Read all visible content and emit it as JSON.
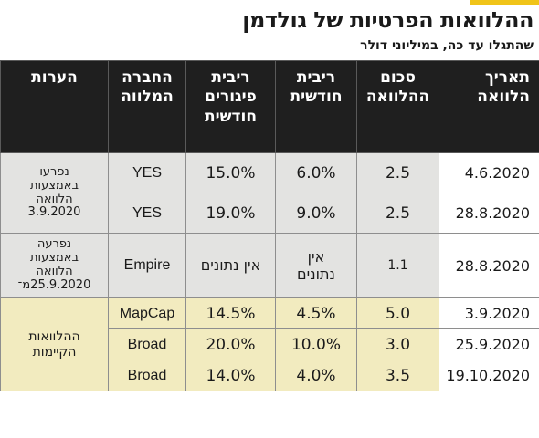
{
  "title": "ההלוואות הפרטיות של גולדמן",
  "subtitle": "שהתגלו עד כה, במיליוני דולר",
  "columns": {
    "date": "תאריך\nהלוואה",
    "amount": "סכום\nההלוואה",
    "monthly_rate": "ריבית\nחודשית",
    "late_rate": "ריבית\nפיגורים\nחודשית",
    "lender": "החברה\nהמלווה",
    "notes": "הערות"
  },
  "rows": [
    {
      "date": "4.6.2020",
      "amount": "2.5",
      "monthly_rate": "6.0%",
      "late_rate": "15.0%",
      "lender": "YES"
    },
    {
      "date": "28.8.2020",
      "amount": "2.5",
      "monthly_rate": "9.0%",
      "late_rate": "19.0%",
      "lender": "YES"
    },
    {
      "date": "28.8.2020",
      "amount": "1.1",
      "monthly_rate": "אין\nנתונים",
      "late_rate": "אין נתונים",
      "lender": "Empire"
    },
    {
      "date": "3.9.2020",
      "amount": "5.0",
      "monthly_rate": "4.5%",
      "late_rate": "14.5%",
      "lender": "MapCap"
    },
    {
      "date": "25.9.2020",
      "amount": "3.0",
      "monthly_rate": "10.0%",
      "late_rate": "20.0%",
      "lender": "Broad"
    },
    {
      "date": "19.10.2020",
      "amount": "3.5",
      "monthly_rate": "4.0%",
      "late_rate": "14.0%",
      "lender": "Broad"
    }
  ],
  "notes": {
    "yes_group": "נפרעו\nבאמצעות\nהלוואה\n3.9.2020",
    "empire": "נפרעה\nבאמצעות\nהלוואה\n25.9.2020מ־",
    "current_group": "ההלוואות\nהקיימות"
  },
  "colors": {
    "header_bg": "#1f1f1f",
    "grey_rows": "#e3e3e1",
    "yellow_rows": "#f2ebbf",
    "accent": "#f0c419"
  }
}
